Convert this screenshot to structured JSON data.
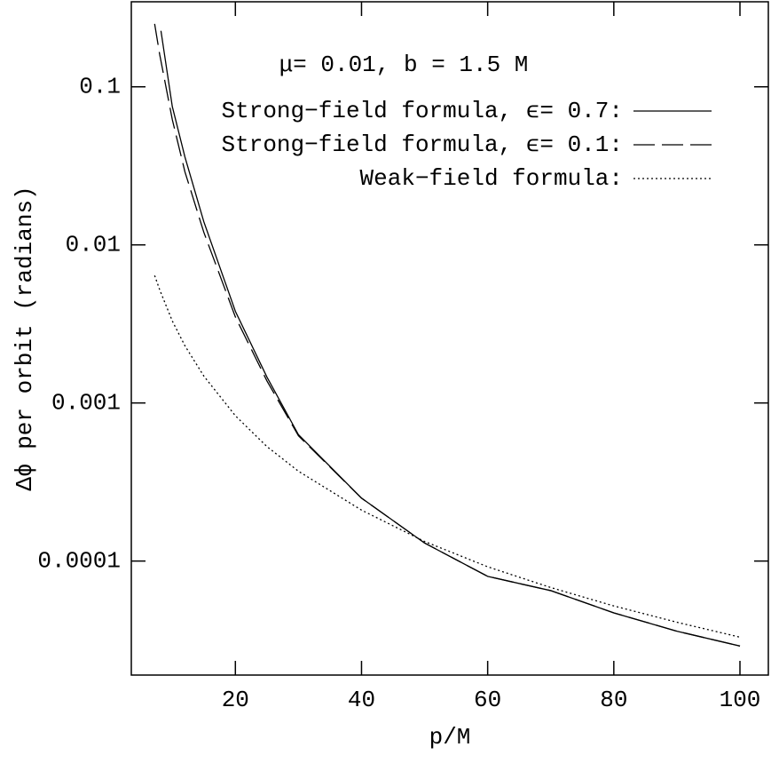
{
  "chart_data": {
    "type": "line",
    "annotation": "μ= 0.01, b = 1.5 M",
    "xlabel": "p/M",
    "ylabel": "Δϕ per orbit (radians)",
    "log_y": true,
    "xlim": [
      3.5,
      104.5
    ],
    "ylim": [
      1.9e-05,
      0.345
    ],
    "xticks": [
      20,
      40,
      60,
      80,
      100
    ],
    "yticks": [
      0.1,
      0.01,
      0.001,
      0.0001
    ],
    "legend": "upper right",
    "series": [
      {
        "name": "Strong−field formula, ϵ= 0.7:",
        "color": "#000000",
        "dash": "solid",
        "x": [
          8.2,
          10,
          12,
          15,
          20,
          25,
          30,
          40,
          50,
          60,
          70,
          80,
          90,
          100
        ],
        "values": [
          0.226,
          0.075,
          0.036,
          0.014,
          0.0038,
          0.00146,
          0.00063,
          0.00025,
          0.00013,
          8e-05,
          6.5e-05,
          4.7e-05,
          3.6e-05,
          2.9e-05
        ]
      },
      {
        "name": "Strong−field formula, ϵ= 0.1:",
        "color": "#000000",
        "dash": "dashed",
        "x": [
          7.2,
          8,
          10,
          12,
          15,
          20,
          25,
          30,
          40,
          50,
          60,
          70,
          80,
          90,
          100
        ],
        "values": [
          0.25,
          0.16,
          0.062,
          0.029,
          0.012,
          0.0035,
          0.00138,
          0.00062,
          0.00025,
          0.00013,
          8e-05,
          6.5e-05,
          4.7e-05,
          3.6e-05,
          2.9e-05
        ]
      },
      {
        "name": "Weak−field formula:",
        "color": "#000000",
        "dash": "dotted",
        "x": [
          7.2,
          8,
          10,
          12,
          15,
          20,
          25,
          30,
          40,
          50,
          60,
          70,
          80,
          90,
          100
        ],
        "values": [
          0.0064,
          0.0052,
          0.0033,
          0.0023,
          0.00148,
          0.00083,
          0.00053,
          0.00037,
          0.00021,
          0.000133,
          9.2e-05,
          6.8e-05,
          5.2e-05,
          4.1e-05,
          3.3e-05
        ]
      }
    ]
  }
}
